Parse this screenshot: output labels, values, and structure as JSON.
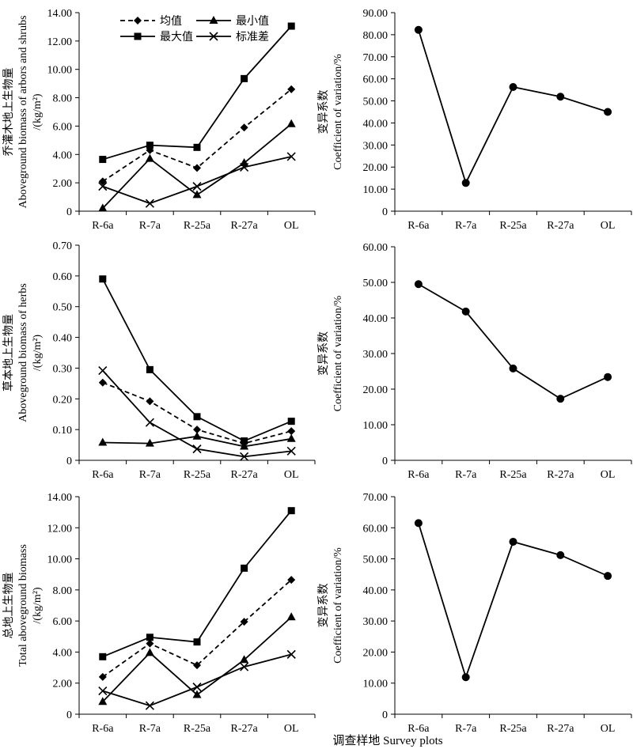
{
  "x_title": "调查样地 Survey plots",
  "chart_data": [
    {
      "type": "line",
      "ylabel_lines": [
        "乔灌木地上生物量",
        "Aboveground biomass of  arbors and shrubs",
        "/(kg/m²)"
      ],
      "ylim": [
        0,
        14
      ],
      "ytick_labels": [
        "0",
        "2.00",
        "4.00",
        "6.00",
        "8.00",
        "10.00",
        "12.00",
        "14.00"
      ],
      "categories": [
        "R-6a",
        "R-7a",
        "R-25a",
        "R-27a",
        "OL"
      ],
      "legend": "top-left",
      "series": [
        {
          "name": "均值",
          "marker": "diamond",
          "dash": true,
          "values": [
            2.1,
            4.3,
            3.05,
            5.9,
            8.6
          ]
        },
        {
          "name": "最小值",
          "marker": "triangle",
          "dash": false,
          "values": [
            0.2,
            3.7,
            1.15,
            3.4,
            6.15
          ]
        },
        {
          "name": "最大值",
          "marker": "square",
          "dash": false,
          "values": [
            3.65,
            4.65,
            4.5,
            9.35,
            13.05
          ]
        },
        {
          "name": "标准差",
          "marker": "x",
          "dash": false,
          "values": [
            1.75,
            0.55,
            1.75,
            3.1,
            3.85
          ]
        }
      ]
    },
    {
      "type": "line",
      "ylabel_lines": [
        "变异系数",
        "Coefficient of variation/%"
      ],
      "ylim": [
        0,
        90
      ],
      "ytick_labels": [
        "0",
        "10.00",
        "20.00",
        "30.00",
        "40.00",
        "50.00",
        "60.00",
        "70.00",
        "80.00",
        "90.00"
      ],
      "categories": [
        "R-6a",
        "R-7a",
        "R-25a",
        "R-27a",
        "OL"
      ],
      "series": [
        {
          "marker": "circle",
          "dash": false,
          "values": [
            82.2,
            12.8,
            56.3,
            51.9,
            45.0
          ]
        }
      ]
    },
    {
      "type": "line",
      "ylabel_lines": [
        "草本地上生物量",
        "Aboveground biomass of  herbs",
        "/(kg/m²)"
      ],
      "ylim": [
        0,
        0.7
      ],
      "ytick_labels": [
        "0",
        "0.10",
        "0.20",
        "0.30",
        "0.40",
        "0.50",
        "0.60",
        "0.70"
      ],
      "categories": [
        "R-6a",
        "R-7a",
        "R-25a",
        "R-27a",
        "OL"
      ],
      "series": [
        {
          "name": "均值",
          "marker": "diamond",
          "dash": true,
          "values": [
            0.253,
            0.192,
            0.1,
            0.055,
            0.095
          ]
        },
        {
          "name": "最小值",
          "marker": "triangle",
          "dash": false,
          "values": [
            0.058,
            0.055,
            0.078,
            0.045,
            0.07
          ]
        },
        {
          "name": "最大值",
          "marker": "square",
          "dash": false,
          "values": [
            0.59,
            0.295,
            0.142,
            0.063,
            0.127
          ]
        },
        {
          "name": "标准差",
          "marker": "x",
          "dash": false,
          "values": [
            0.292,
            0.123,
            0.037,
            0.012,
            0.03
          ]
        }
      ]
    },
    {
      "type": "line",
      "ylabel_lines": [
        "变异系数",
        "Coefficient of variation/%"
      ],
      "ylim": [
        0,
        60
      ],
      "ytick_labels": [
        "0",
        "10.00",
        "20.00",
        "30.00",
        "40.00",
        "50.00",
        "60.00"
      ],
      "categories": [
        "R-6a",
        "R-7a",
        "R-25a",
        "R-27a",
        "OL"
      ],
      "series": [
        {
          "marker": "circle",
          "dash": false,
          "values": [
            49.5,
            41.8,
            25.8,
            17.3,
            23.4
          ]
        }
      ]
    },
    {
      "type": "line",
      "ylabel_lines": [
        "总地上生物量",
        "Total aboveground biomass",
        "/(kg/m²)"
      ],
      "ylim": [
        0,
        14
      ],
      "ytick_labels": [
        "0",
        "2.00",
        "4.00",
        "6.00",
        "8.00",
        "10.00",
        "12.00",
        "14.00"
      ],
      "categories": [
        "R-6a",
        "R-7a",
        "R-25a",
        "R-27a",
        "OL"
      ],
      "series": [
        {
          "name": "均值",
          "marker": "diamond",
          "dash": true,
          "values": [
            2.4,
            4.55,
            3.15,
            5.95,
            8.65
          ]
        },
        {
          "name": "最小值",
          "marker": "triangle",
          "dash": false,
          "values": [
            0.8,
            3.95,
            1.25,
            3.5,
            6.25
          ]
        },
        {
          "name": "最大值",
          "marker": "square",
          "dash": false,
          "values": [
            3.7,
            4.95,
            4.65,
            9.4,
            13.1
          ]
        },
        {
          "name": "标准差",
          "marker": "x",
          "dash": false,
          "values": [
            1.5,
            0.55,
            1.75,
            3.05,
            3.85
          ]
        }
      ]
    },
    {
      "type": "line",
      "ylabel_lines": [
        "变异系数",
        "Coefficient of variation/%"
      ],
      "ylim": [
        0,
        70
      ],
      "ytick_labels": [
        "0",
        "10.00",
        "20.00",
        "30.00",
        "40.00",
        "50.00",
        "60.00",
        "70.00"
      ],
      "categories": [
        "R-6a",
        "R-7a",
        "R-25a",
        "R-27a",
        "OL"
      ],
      "series": [
        {
          "marker": "circle",
          "dash": false,
          "values": [
            61.5,
            11.9,
            55.5,
            51.2,
            44.5
          ]
        }
      ]
    }
  ]
}
